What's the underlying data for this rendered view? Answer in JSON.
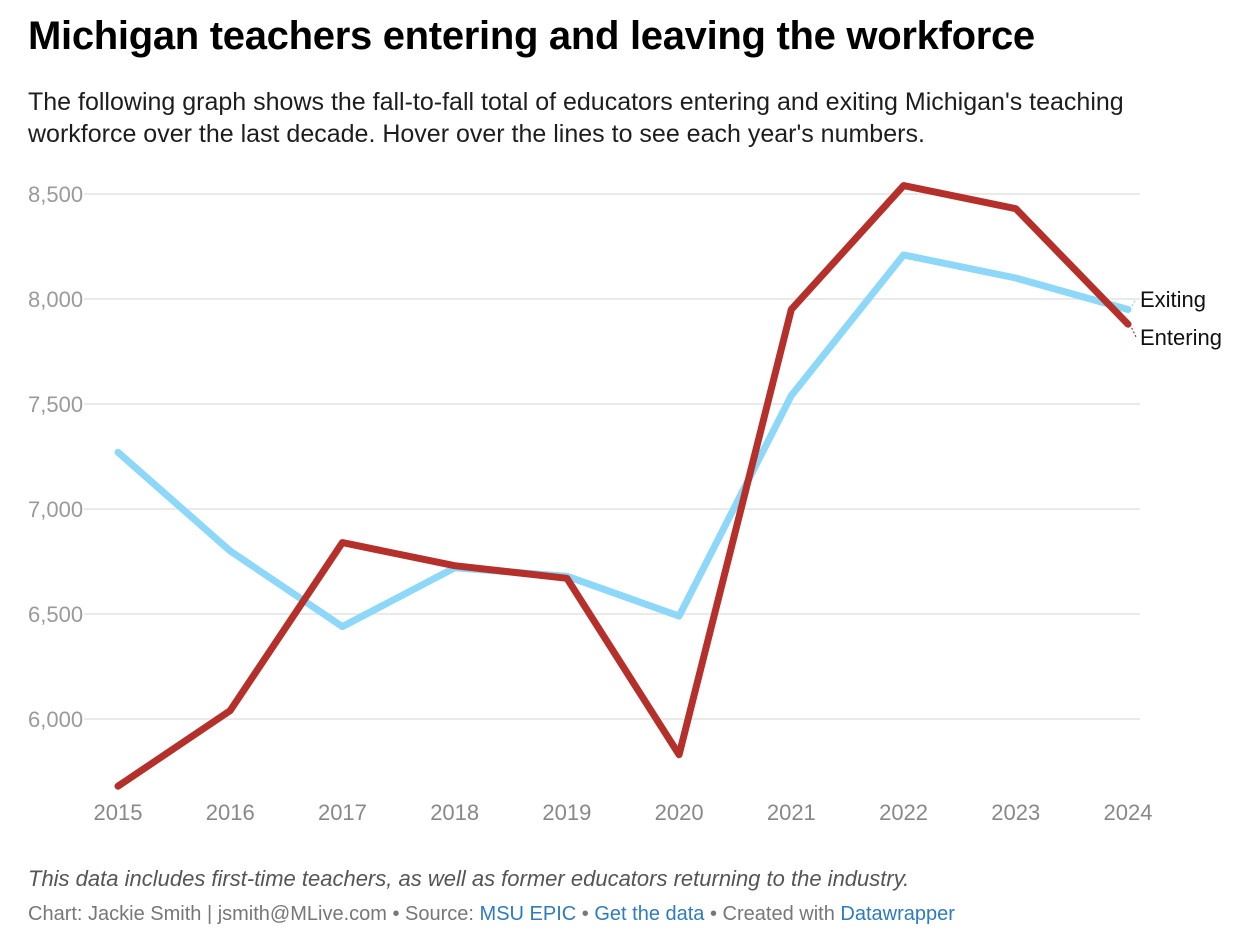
{
  "header": {
    "title": "Michigan teachers entering and leaving the workforce",
    "subtitle": "The following graph shows the fall-to-fall total of educators entering and exiting Michigan's teaching workforce over the last decade. Hover over the lines to see each year's numbers."
  },
  "footer": {
    "note": "This data includes first-time teachers, as well as former educators returning to the industry.",
    "chart_by": "Chart: Jackie Smith | jsmith@MLive.com",
    "sep1": " • Source: ",
    "source_link": "MSU EPIC",
    "sep2": " • ",
    "data_link": "Get the data",
    "sep3": " • Created with ",
    "tool_link": "Datawrapper"
  },
  "chart_data": {
    "type": "line",
    "title": "Michigan teachers entering and leaving the workforce",
    "xlabel": "",
    "ylabel": "",
    "x": [
      "2015",
      "2016",
      "2017",
      "2018",
      "2019",
      "2020",
      "2021",
      "2022",
      "2023",
      "2024"
    ],
    "yticks": [
      "6,000",
      "6,500",
      "7,000",
      "7,500",
      "8,000",
      "8,500"
    ],
    "ytick_values": [
      6000,
      6500,
      7000,
      7500,
      8000,
      8500
    ],
    "ylim": [
      5700,
      8600
    ],
    "grid": true,
    "legend": "direct labels at right end of lines",
    "series": [
      {
        "name": "Exiting",
        "color": "#8dd8f8",
        "values": [
          7270,
          6800,
          6440,
          6720,
          6680,
          6490,
          7540,
          8210,
          8100,
          7950
        ]
      },
      {
        "name": "Entering",
        "color": "#b5302a",
        "values": [
          5680,
          6040,
          6840,
          6730,
          6670,
          5830,
          7950,
          8540,
          8430,
          7880
        ]
      }
    ]
  }
}
